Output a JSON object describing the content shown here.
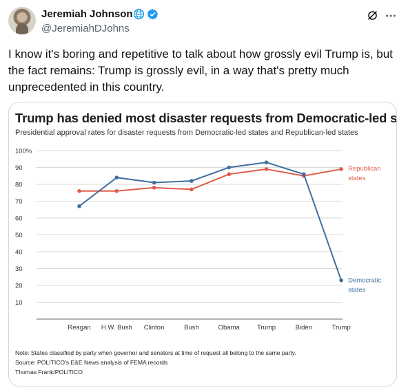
{
  "tweet": {
    "author": {
      "display_name": "Jeremiah Johnson",
      "handle": "@JeremiahDJohns"
    },
    "text": "I know it's boring and repetitive to talk about how grossly evil Trump is, but the fact remains: Trump is grossly evil, in a way that's pretty much unprecedented in this country.",
    "icons": {
      "globe": "globe-icon",
      "verified": "verified-badge-icon",
      "grok": "grok-icon",
      "more": "more-options-icon"
    }
  },
  "colors": {
    "republican": "#e15c4a",
    "democratic": "#3f6f9e",
    "verified": "#1d9bf0",
    "gridline": "#d9d9d9"
  },
  "chart_data": {
    "type": "line",
    "title": "Trump has denied most disaster requests from Democratic-led states",
    "subtitle": "Presidential approval rates for disaster requests from Democratic-led states and Republican-led states",
    "categories": [
      "Reagan",
      "H.W. Bush",
      "Clinton",
      "Bush",
      "Obama",
      "Trump",
      "Biden",
      "Trump"
    ],
    "y_ticks": [
      "100%",
      "90",
      "80",
      "70",
      "60",
      "50",
      "40",
      "30",
      "20",
      "10"
    ],
    "ylim": [
      0,
      100
    ],
    "grid": true,
    "series": [
      {
        "name": "Republican states",
        "label_lines": [
          "Republican",
          "states"
        ],
        "values": [
          76,
          76,
          78,
          77,
          86,
          89,
          85,
          89
        ]
      },
      {
        "name": "Democratic states",
        "label_lines": [
          "Democratic",
          "states"
        ],
        "values": [
          67,
          84,
          81,
          82,
          90,
          93,
          86,
          23
        ]
      }
    ],
    "notes": [
      "Note: States classified by party when governor and senators at time of request all belong to the same party.",
      "Source: POLITICO's E&E News analysis of FEMA records",
      "Thomas Frank/POLITICO"
    ]
  }
}
